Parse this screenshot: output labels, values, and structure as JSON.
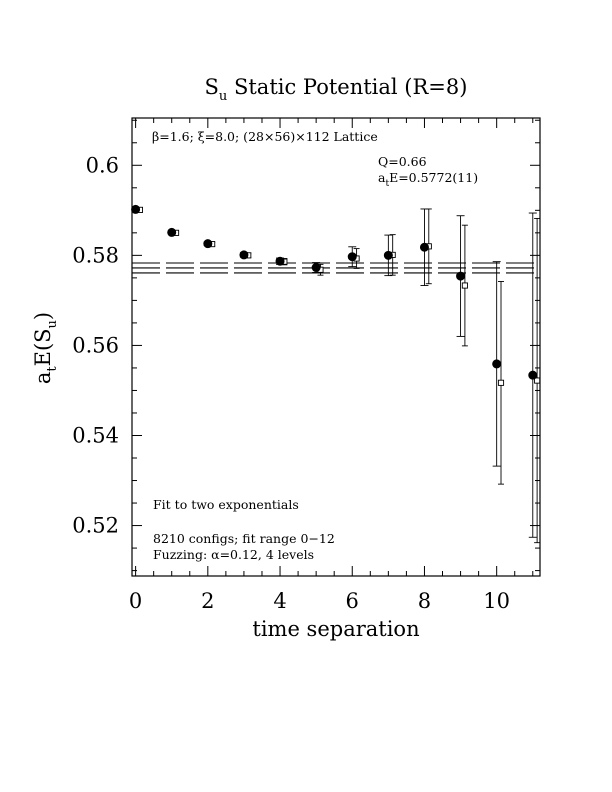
{
  "chart_data": {
    "type": "scatter",
    "title_main": "S",
    "title_sub": "u",
    "title_rest": " Static Potential (R=8)",
    "xlabel": "time separation",
    "ylabel_a": "a",
    "ylabel_t": "t",
    "ylabel_mid": "E(S",
    "ylabel_u": "u",
    "ylabel_end": ")",
    "xlim": [
      -0.1,
      11.2
    ],
    "ylim": [
      0.5088,
      0.6105
    ],
    "x_major_ticks": [
      0,
      2,
      4,
      6,
      8,
      10
    ],
    "x_tick_labels": [
      "0",
      "2",
      "4",
      "6",
      "8",
      "10"
    ],
    "y_major_ticks": [
      0.52,
      0.54,
      0.56,
      0.58,
      0.6
    ],
    "y_tick_labels": [
      "0.52",
      "0.54",
      "0.56",
      "0.58",
      "0.6"
    ],
    "annotations": {
      "lattice": "β=1.6; ξ=8.0; (28×56)×112 Lattice",
      "q": "Q=0.66",
      "energy_prefix": "a",
      "energy_sub": "t",
      "energy_rest": "E=0.5772(11)",
      "fit": "Fit to two exponentials",
      "configs": "8210 configs; fit range 0−12",
      "fuzzing": "Fuzzing: α=0.12, 4 levels"
    },
    "fit": {
      "central": 0.5772,
      "error": 0.0011,
      "x_range": [
        -0.1,
        11.2
      ]
    },
    "series": [
      {
        "marker": "filled-circle",
        "points": [
          {
            "x": 0,
            "y": 0.5902,
            "err": 0.0003
          },
          {
            "x": 1,
            "y": 0.5851,
            "err": 0.0003
          },
          {
            "x": 2,
            "y": 0.5826,
            "err": 0.0004
          },
          {
            "x": 3,
            "y": 0.5801,
            "err": 0.0005
          },
          {
            "x": 4,
            "y": 0.5787,
            "err": 0.0007
          },
          {
            "x": 5,
            "y": 0.5773,
            "err": 0.0011
          },
          {
            "x": 6,
            "y": 0.5797,
            "err": 0.0022
          },
          {
            "x": 7,
            "y": 0.58,
            "err": 0.0045
          },
          {
            "x": 8,
            "y": 0.5818,
            "err": 0.0085
          },
          {
            "x": 9,
            "y": 0.5754,
            "err": 0.0134
          },
          {
            "x": 10,
            "y": 0.5559,
            "err": 0.0227
          },
          {
            "x": 11,
            "y": 0.5534,
            "err": 0.036
          }
        ]
      },
      {
        "marker": "open-square",
        "x_offset": 0.12,
        "points": [
          {
            "x": 0,
            "y": 0.5901,
            "err": 0.0003
          },
          {
            "x": 1,
            "y": 0.585,
            "err": 0.0003
          },
          {
            "x": 2,
            "y": 0.5825,
            "err": 0.0004
          },
          {
            "x": 3,
            "y": 0.58,
            "err": 0.0005
          },
          {
            "x": 4,
            "y": 0.5786,
            "err": 0.0007
          },
          {
            "x": 5,
            "y": 0.5768,
            "err": 0.0012
          },
          {
            "x": 6,
            "y": 0.5793,
            "err": 0.0022
          },
          {
            "x": 7,
            "y": 0.5801,
            "err": 0.0045
          },
          {
            "x": 8,
            "y": 0.582,
            "err": 0.0083
          },
          {
            "x": 9,
            "y": 0.5733,
            "err": 0.0134
          },
          {
            "x": 10,
            "y": 0.5517,
            "err": 0.0225
          },
          {
            "x": 11,
            "y": 0.5522,
            "err": 0.036
          }
        ]
      }
    ]
  }
}
